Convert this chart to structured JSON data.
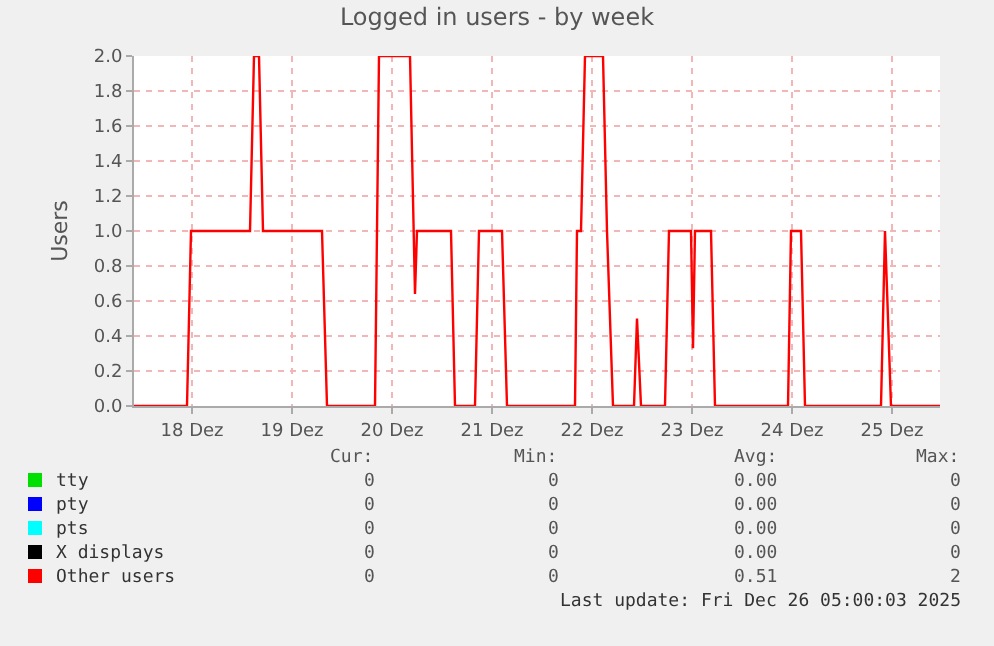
{
  "chart_data": {
    "type": "line",
    "title": "Logged in users - by week",
    "ylabel": "Users",
    "xlim": [
      17.92,
      25.98
    ],
    "xticks": [
      {
        "value": 18.5,
        "label": "18 Dez"
      },
      {
        "value": 19.5,
        "label": "19 Dez"
      },
      {
        "value": 20.5,
        "label": "20 Dez"
      },
      {
        "value": 21.5,
        "label": "21 Dez"
      },
      {
        "value": 22.5,
        "label": "22 Dez"
      },
      {
        "value": 23.5,
        "label": "23 Dez"
      },
      {
        "value": 24.5,
        "label": "24 Dez"
      },
      {
        "value": 25.5,
        "label": "25 Dez"
      }
    ],
    "ylim": [
      0,
      2
    ],
    "yticks": [
      {
        "value": 0,
        "label": "0.0"
      },
      {
        "value": 0.2,
        "label": "0.2"
      },
      {
        "value": 0.4,
        "label": "0.4"
      },
      {
        "value": 0.6,
        "label": "0.6"
      },
      {
        "value": 0.8,
        "label": "0.8"
      },
      {
        "value": 1,
        "label": "1.0"
      },
      {
        "value": 1.2,
        "label": "1.2"
      },
      {
        "value": 1.4,
        "label": "1.4"
      },
      {
        "value": 1.6,
        "label": "1.6"
      },
      {
        "value": 1.8,
        "label": "1.8"
      },
      {
        "value": 2,
        "label": "2.0"
      }
    ],
    "grid": true,
    "legend": "bottom",
    "marker": "none",
    "line_style": "solid",
    "series": [
      {
        "name": "tty",
        "color": "#00e000",
        "values": [
          null
        ]
      },
      {
        "name": "pty",
        "color": "#0000ff",
        "values": [
          null
        ]
      },
      {
        "name": "pts",
        "color": "#00ffff",
        "values": [
          null
        ]
      },
      {
        "name": "X displays",
        "color": "#000000",
        "values": [
          null
        ]
      },
      {
        "name": "Other users",
        "color": "#ff0000",
        "x": [
          17.92,
          18.45,
          18.49,
          19.08,
          19.12,
          19.17,
          19.21,
          19.8,
          19.85,
          20.33,
          20.37,
          20.68,
          20.73,
          20.75,
          21.09,
          21.13,
          21.33,
          21.37,
          21.6,
          21.65,
          22.33,
          22.35,
          22.39,
          22.43,
          22.61,
          22.65,
          22.71,
          22.92,
          22.95,
          22.99,
          23.23,
          23.27,
          23.49,
          23.51,
          23.53,
          23.69,
          23.73,
          24.46,
          24.49,
          24.59,
          24.63,
          25.39,
          25.43,
          25.49,
          25.98
        ],
        "values": [
          0,
          0,
          1,
          1,
          2,
          2,
          1,
          1,
          0,
          0,
          2,
          2,
          0.64,
          1,
          1,
          0,
          0,
          1,
          1,
          0,
          0,
          1,
          1,
          2,
          2,
          1,
          0,
          0,
          0.5,
          0,
          0,
          1,
          1,
          0.33,
          1,
          1,
          0,
          0,
          1,
          1,
          0,
          0,
          1,
          0,
          0
        ]
      }
    ],
    "annotations": [
      "Cur:",
      "Min:",
      "Avg:",
      "Max:",
      "0",
      "0",
      "0.00",
      "0",
      "0",
      "0",
      "0.00",
      "0",
      "0",
      "0",
      "0.00",
      "0",
      "0",
      "0",
      "0.00",
      "0",
      "0",
      "0",
      "0.51",
      "2",
      "Last update: Fri Dec 26 05:00:03 2025"
    ]
  }
}
